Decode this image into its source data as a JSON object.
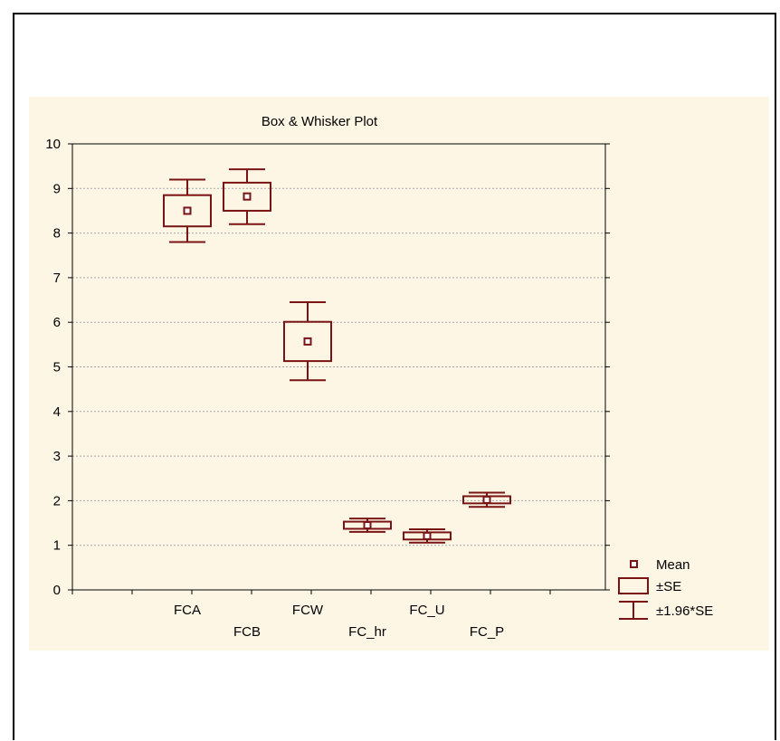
{
  "colors": {
    "panel_background": "#fdf6e4",
    "series": "#7a1414",
    "gridline": "#a8a8a8",
    "axis": "#000000"
  },
  "chart_data": {
    "type": "box",
    "title": "Box & Whisker Plot",
    "xlabel": "",
    "ylabel": "",
    "ylim": [
      0,
      10
    ],
    "yticks": [
      0,
      1,
      2,
      3,
      4,
      5,
      6,
      7,
      8,
      9,
      10
    ],
    "grid": "horizontal dashed",
    "legend_position": "bottom-right outside plot",
    "categories": [
      "FCA",
      "FCB",
      "FCW",
      "FC_hr",
      "FC_U",
      "FC_P"
    ],
    "series": [
      {
        "values": [
          {
            "category": "FCA",
            "mean": 8.5,
            "se_low": 8.15,
            "se_high": 8.85,
            "whisker_low": 7.8,
            "whisker_high": 9.2
          },
          {
            "category": "FCB",
            "mean": 8.82,
            "se_low": 8.5,
            "se_high": 9.13,
            "whisker_low": 8.2,
            "whisker_high": 9.43
          },
          {
            "category": "FCW",
            "mean": 5.57,
            "se_low": 5.13,
            "se_high": 6.01,
            "whisker_low": 4.7,
            "whisker_high": 6.45
          },
          {
            "category": "FC_hr",
            "mean": 1.45,
            "se_low": 1.37,
            "se_high": 1.53,
            "whisker_low": 1.3,
            "whisker_high": 1.6
          },
          {
            "category": "FC_U",
            "mean": 1.21,
            "se_low": 1.13,
            "se_high": 1.29,
            "whisker_low": 1.06,
            "whisker_high": 1.36
          },
          {
            "category": "FC_P",
            "mean": 2.02,
            "se_low": 1.94,
            "se_high": 2.1,
            "whisker_low": 1.86,
            "whisker_high": 2.18
          }
        ]
      }
    ],
    "legend": [
      {
        "symbol": "mean-marker",
        "label": "Mean"
      },
      {
        "symbol": "se-box",
        "label": "±SE"
      },
      {
        "symbol": "whisker",
        "label": "±1.96*SE"
      }
    ]
  }
}
